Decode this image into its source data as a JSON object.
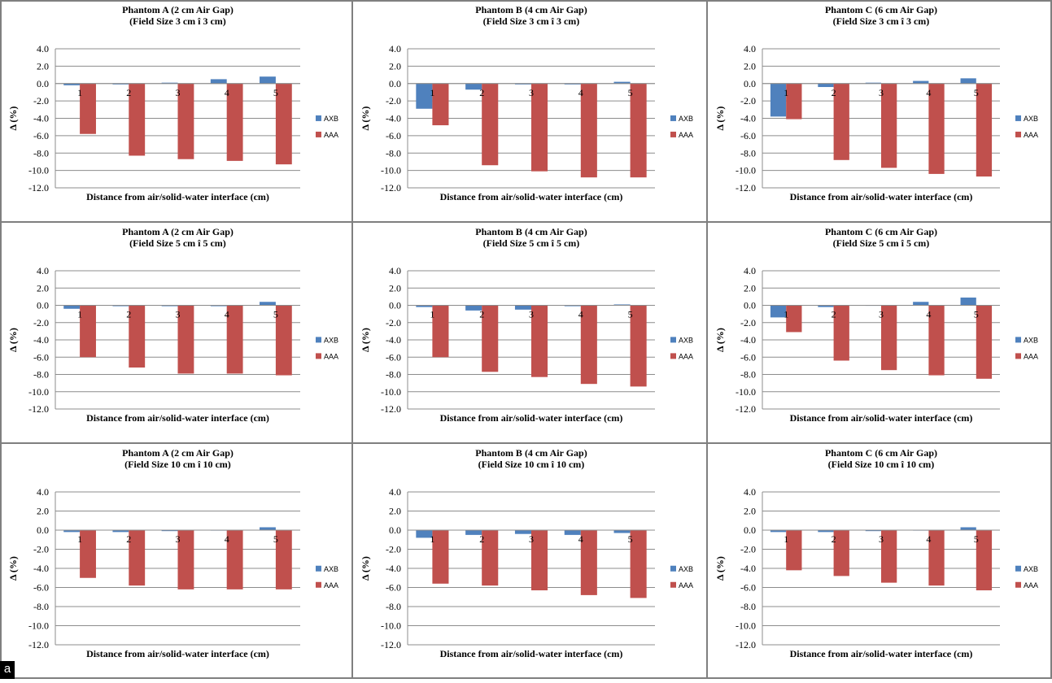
{
  "figure_label": "a",
  "legend": [
    {
      "name": "AXB",
      "color": "#4f81bd"
    },
    {
      "name": "AAA",
      "color": "#c0504d"
    }
  ],
  "chart_data": [
    {
      "type": "bar",
      "title": "Phantom A (2 cm Air Gap)",
      "subtitle": "(Field Size 3 cm î  3 cm)",
      "xlabel": "Distance from air/solid-water interface (cm)",
      "ylabel": "Δ (%)",
      "categories": [
        "1",
        "2",
        "3",
        "4",
        "5"
      ],
      "yticks": [
        "4.0",
        "2.0",
        "0.0",
        "-2.0",
        "-4.0",
        "-6.0",
        "-8.0",
        "-10.0",
        "-12.0"
      ],
      "ylim": [
        -12,
        4
      ],
      "grid": true,
      "legend": "right",
      "series": [
        {
          "name": "AXB",
          "values": [
            -0.2,
            -0.1,
            0.1,
            0.5,
            0.8
          ]
        },
        {
          "name": "AAA",
          "values": [
            -5.8,
            -8.3,
            -8.7,
            -8.9,
            -9.3
          ]
        }
      ]
    },
    {
      "type": "bar",
      "title": "Phantom B (4 cm Air Gap)",
      "subtitle": "(Field Size 3 cm î  3 cm)",
      "xlabel": "Distance from air/solid-water interface (cm)",
      "ylabel": "Δ (%)",
      "categories": [
        "1",
        "2",
        "3",
        "4",
        "5"
      ],
      "yticks": [
        "4.0",
        "2.0",
        "0.0",
        "-2.0",
        "-4.0",
        "-6.0",
        "-8.0",
        "-10.0",
        "-12.0"
      ],
      "ylim": [
        -12,
        4
      ],
      "grid": true,
      "legend": "right",
      "series": [
        {
          "name": "AXB",
          "values": [
            -2.9,
            -0.7,
            -0.1,
            -0.1,
            0.2
          ]
        },
        {
          "name": "AAA",
          "values": [
            -4.8,
            -9.4,
            -10.1,
            -10.8,
            -10.8
          ]
        }
      ]
    },
    {
      "type": "bar",
      "title": "Phantom C (6 cm Air Gap)",
      "subtitle": "(Field Size 3 cm î  3 cm)",
      "xlabel": "Distance from air/solid-water interface (cm)",
      "ylabel": "Δ (%)",
      "categories": [
        "1",
        "2",
        "3",
        "4",
        "5"
      ],
      "yticks": [
        "4.0",
        "2.0",
        "0.0",
        "-2.0",
        "-4.0",
        "-6.0",
        "-8.0",
        "-10.0",
        "-12.0"
      ],
      "ylim": [
        -12,
        4
      ],
      "grid": true,
      "legend": "right",
      "series": [
        {
          "name": "AXB",
          "values": [
            -3.8,
            -0.4,
            0.1,
            0.3,
            0.6
          ]
        },
        {
          "name": "AAA",
          "values": [
            -4.1,
            -8.8,
            -9.7,
            -10.4,
            -10.7
          ]
        }
      ]
    },
    {
      "type": "bar",
      "title": "Phantom A (2 cm Air Gap)",
      "subtitle": "(Field Size 5 cm î  5 cm)",
      "xlabel": "Distance from air/solid-water interface (cm)",
      "ylabel": "Δ (%)",
      "categories": [
        "1",
        "2",
        "3",
        "4",
        "5"
      ],
      "yticks": [
        "4.0",
        "2.0",
        "0.0",
        "-2.0",
        "-4.0",
        "-6.0",
        "-8.0",
        "-10.0",
        "-12.0"
      ],
      "ylim": [
        -12,
        4
      ],
      "grid": true,
      "legend": "right",
      "series": [
        {
          "name": "AXB",
          "values": [
            -0.4,
            -0.1,
            -0.1,
            -0.1,
            0.4
          ]
        },
        {
          "name": "AAA",
          "values": [
            -6.0,
            -7.2,
            -7.9,
            -7.9,
            -8.1
          ]
        }
      ]
    },
    {
      "type": "bar",
      "title": "Phantom B (4 cm Air Gap)",
      "subtitle": "(Field Size 5 cm î  5 cm)",
      "xlabel": "Distance from air/solid-water interface (cm)",
      "ylabel": "Δ (%)",
      "categories": [
        "1",
        "2",
        "3",
        "4",
        "5"
      ],
      "yticks": [
        "4.0",
        "2.0",
        "0.0",
        "-2.0",
        "-4.0",
        "-6.0",
        "-8.0",
        "-10.0",
        "-12.0"
      ],
      "ylim": [
        -12,
        4
      ],
      "grid": true,
      "legend": "right",
      "series": [
        {
          "name": "AXB",
          "values": [
            -0.2,
            -0.6,
            -0.5,
            -0.1,
            0.1
          ]
        },
        {
          "name": "AAA",
          "values": [
            -6.0,
            -7.7,
            -8.3,
            -9.1,
            -9.4
          ]
        }
      ]
    },
    {
      "type": "bar",
      "title": "Phantom C (6 cm Air Gap)",
      "subtitle": "(Field Size 5 cm î  5 cm)",
      "xlabel": "Distance from air/solid-water interface (cm)",
      "ylabel": "Δ (%)",
      "categories": [
        "1",
        "2",
        "3",
        "4",
        "5"
      ],
      "yticks": [
        "4.0",
        "2.0",
        "0.0",
        "-2.0",
        "-4.0",
        "-6.0",
        "-8.0",
        "-10.0",
        "-12.0"
      ],
      "ylim": [
        -12,
        4
      ],
      "grid": true,
      "legend": "right",
      "series": [
        {
          "name": "AXB",
          "values": [
            -1.4,
            -0.2,
            0.0,
            0.4,
            0.9
          ]
        },
        {
          "name": "AAA",
          "values": [
            -3.1,
            -6.4,
            -7.5,
            -8.1,
            -8.5
          ]
        }
      ]
    },
    {
      "type": "bar",
      "title": "Phantom A (2 cm Air Gap)",
      "subtitle": "(Field Size 10 cm î  10 cm)",
      "xlabel": "Distance from air/solid-water interface (cm)",
      "ylabel": "Δ (%)",
      "categories": [
        "1",
        "2",
        "3",
        "4",
        "5"
      ],
      "yticks": [
        "4.0",
        "2.0",
        "0.0",
        "-2.0",
        "-4.0",
        "-6.0",
        "-8.0",
        "-10.0",
        "-12.0"
      ],
      "ylim": [
        -12,
        4
      ],
      "grid": true,
      "legend": "right",
      "series": [
        {
          "name": "AXB",
          "values": [
            -0.2,
            -0.2,
            -0.1,
            0.0,
            0.3
          ]
        },
        {
          "name": "AAA",
          "values": [
            -5.0,
            -5.8,
            -6.2,
            -6.2,
            -6.2
          ]
        }
      ]
    },
    {
      "type": "bar",
      "title": "Phantom B (4 cm Air Gap)",
      "subtitle": "(Field Size 10 cm î  10 cm)",
      "xlabel": "Distance from air/solid-water interface (cm)",
      "ylabel": "Δ (%)",
      "categories": [
        "1",
        "2",
        "3",
        "4",
        "5"
      ],
      "yticks": [
        "4.0",
        "2.0",
        "0.0",
        "-2.0",
        "-4.0",
        "-6.0",
        "-8.0",
        "-10.0",
        "-12.0"
      ],
      "ylim": [
        -12,
        4
      ],
      "grid": true,
      "legend": "right",
      "series": [
        {
          "name": "AXB",
          "values": [
            -0.8,
            -0.5,
            -0.4,
            -0.5,
            -0.3
          ]
        },
        {
          "name": "AAA",
          "values": [
            -5.6,
            -5.8,
            -6.3,
            -6.8,
            -7.1
          ]
        }
      ]
    },
    {
      "type": "bar",
      "title": "Phantom C (6 cm Air Gap)",
      "subtitle": "(Field Size 10 cm î  10 cm)",
      "xlabel": "Distance from air/solid-water interface (cm)",
      "ylabel": "Δ (%)",
      "categories": [
        "1",
        "2",
        "3",
        "4",
        "5"
      ],
      "yticks": [
        "4.0",
        "2.0",
        "0.0",
        "-2.0",
        "-4.0",
        "-6.0",
        "-8.0",
        "-10.0",
        "-12.0"
      ],
      "ylim": [
        -12,
        4
      ],
      "grid": true,
      "legend": "right",
      "series": [
        {
          "name": "AXB",
          "values": [
            -0.2,
            -0.2,
            -0.1,
            0.0,
            0.3
          ]
        },
        {
          "name": "AAA",
          "values": [
            -4.2,
            -4.8,
            -5.5,
            -5.8,
            -6.3
          ]
        }
      ]
    }
  ]
}
